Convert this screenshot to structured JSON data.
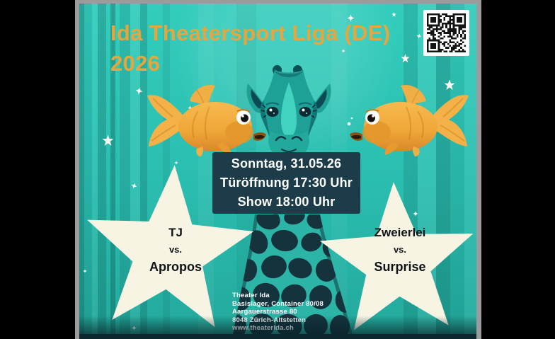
{
  "poster": {
    "title": {
      "line1": "Ida Theatersport Liga (DE)",
      "line2": "2026"
    },
    "event": {
      "date": "Sonntag, 31.05.26",
      "doors": "Türöffnung 17:30 Uhr",
      "show": "Show 18:00 Uhr"
    },
    "matchups": [
      {
        "team_a": "TJ",
        "vs": "vs.",
        "team_b": "Apropos"
      },
      {
        "team_a": "Zweierlei",
        "vs": "vs.",
        "team_b": "Surprise"
      }
    ],
    "venue": {
      "line1": "Theater Ida",
      "line2": "Basislager, Container 80/08",
      "line3": "Aargauerstrasse 80",
      "line4": "8048 Zürich-Altstetten",
      "line5": "www.theaterida.ch"
    },
    "colors": {
      "background_teal": "#2ABDAF",
      "title_gold": "#E7A53D",
      "info_box": "#1C3C49",
      "info_text": "#FFFFFF",
      "star_cream": "#F7F4E4",
      "match_text": "#101416",
      "giraffe_teal": "#1FA096",
      "giraffe_spots": "#14333D",
      "goldfish_orange": "#EFA637",
      "frame_gray": "#9B9B9B",
      "outer_black": "#000000"
    },
    "icons": {
      "qr": "qr-code",
      "fish": "goldfish-icon",
      "animal": "giraffe-icon",
      "big_star": "five-point-star",
      "sparkle": "sparkle-star-icon"
    }
  }
}
